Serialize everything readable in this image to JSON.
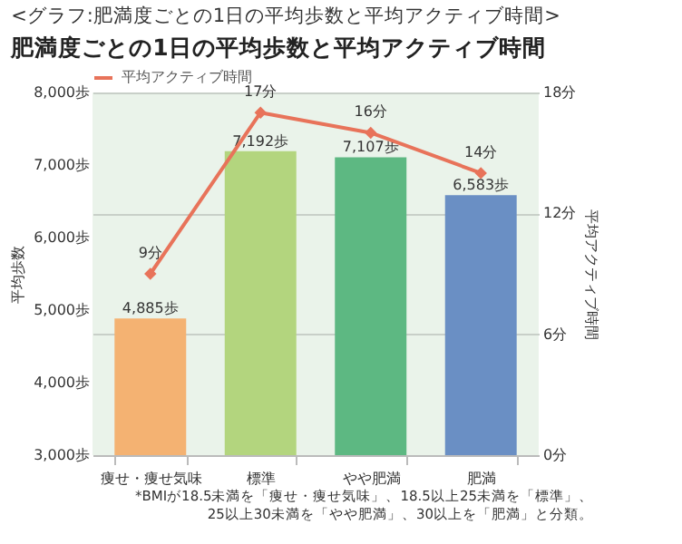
{
  "chart_data": {
    "type": "bar",
    "title": "<グラフ:肥満度ごとの1日の平均歩数と平均アクティブ時間>",
    "subtitle": "肥満度ごとの1日の平均歩数と平均アクティブ時間",
    "categories": [
      "痩せ・痩せ気味",
      "標準",
      "やや肥満",
      "肥満"
    ],
    "series": [
      {
        "colors": [
          "#f4b272",
          "#b3d57e",
          "#5db882",
          "#6a8fc4"
        ],
        "values": [
          4885,
          7192,
          7107,
          6583
        ],
        "value_labels": [
          "4,885歩",
          "7,192歩",
          "7,107歩",
          "6,583歩"
        ]
      },
      {
        "type": "line",
        "name": "平均アクティブ時間",
        "color": "#e8735a",
        "axis": "y2",
        "values": [
          9,
          17,
          16,
          14
        ],
        "value_labels": [
          "9分",
          "17分",
          "16分",
          "14分"
        ]
      }
    ],
    "ylabel": "平均歩数",
    "y2label": "平均アクティブ時間",
    "ylim": [
      3000,
      8000
    ],
    "yticks": [
      {
        "value": 3000,
        "label": "3,000歩"
      },
      {
        "value": 4000,
        "label": "4,000歩"
      },
      {
        "value": 5000,
        "label": "5,000歩"
      },
      {
        "value": 6000,
        "label": "6,000歩"
      },
      {
        "value": 7000,
        "label": "7,000歩"
      },
      {
        "value": 8000,
        "label": "8,000歩"
      }
    ],
    "y2lim": [
      0,
      18
    ],
    "y2ticks": [
      {
        "value": 0,
        "label": "0分"
      },
      {
        "value": 6,
        "label": "6分"
      },
      {
        "value": 12,
        "label": "12分"
      },
      {
        "value": 18,
        "label": "18分"
      }
    ],
    "grid": "y2",
    "legend": "top",
    "marker": "diamond",
    "annotations": [
      "*BMIが18.5未満を「痩せ・痩せ気味」、18.5以上25未満を「標準」、25以上30未満を「やや肥満」、30以上を「肥満」と分類。"
    ]
  }
}
